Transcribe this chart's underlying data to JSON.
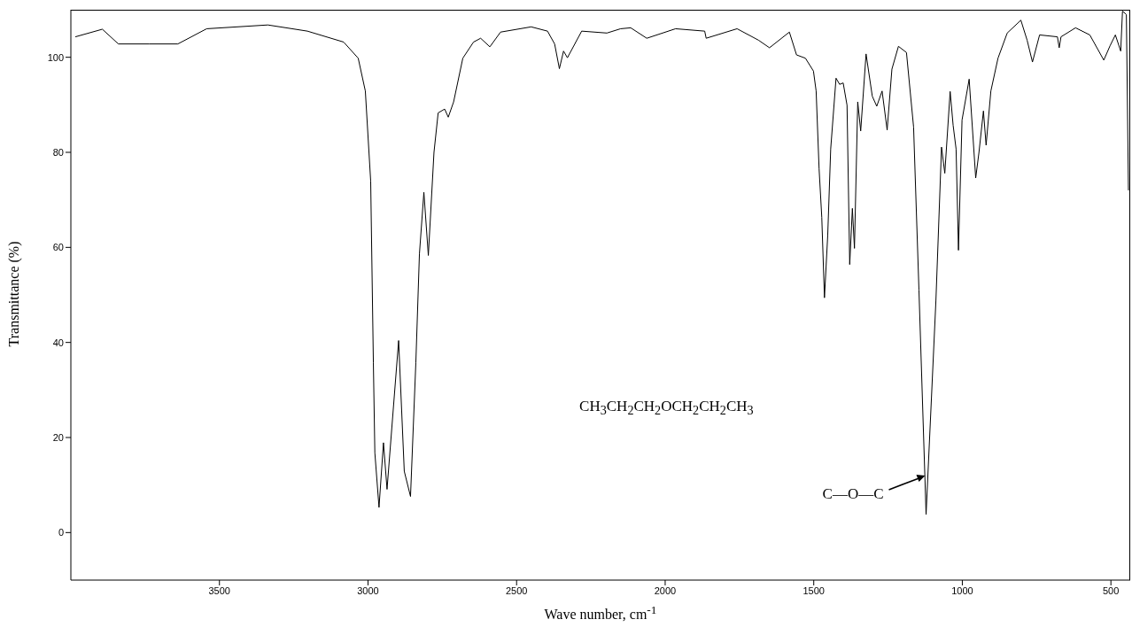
{
  "chart_data": {
    "type": "line",
    "xlabel": "Wave number, cm$^{-1}$",
    "ylabel": "Transmittance (%)",
    "xlim": [
      4000,
      435
    ],
    "xticks": [
      3500,
      3000,
      2500,
      2000,
      1500,
      1000,
      500
    ],
    "ylim": [
      -10,
      110
    ],
    "yticks": [
      0,
      20,
      40,
      60,
      80,
      100
    ],
    "grid": false,
    "marker": "none",
    "line_style": "solid",
    "annotations": [
      "CH$_{3}$CH$_{2}$CH$_{2}$OCH$_{2}$CH$_{2}$CH$_{3}$",
      {
        "text": "C—O—C",
        "x": 1122,
        "y": 12
      }
    ],
    "series": [
      {
        "color": "#000000",
        "x": [
          3985,
          3894,
          3840,
          3737,
          3640,
          3543,
          3337,
          3204,
          3082,
          3033,
          3009,
          2991,
          2982,
          2977,
          2963,
          2948,
          2936,
          2897,
          2878,
          2857,
          2839,
          2827,
          2812,
          2797,
          2778,
          2764,
          2742,
          2730,
          2712,
          2681,
          2645,
          2621,
          2590,
          2554,
          2451,
          2396,
          2372,
          2356,
          2342,
          2329,
          2281,
          2196,
          2150,
          2116,
          2062,
          1965,
          1867,
          1862,
          1758,
          1686,
          1649,
          1582,
          1558,
          1528,
          1501,
          1492,
          1482,
          1473,
          1464,
          1453,
          1443,
          1425,
          1413,
          1401,
          1388,
          1379,
          1370,
          1363,
          1352,
          1342,
          1324,
          1303,
          1288,
          1270,
          1253,
          1237,
          1215,
          1188,
          1164,
          1146,
          1122,
          1104,
          1089,
          1070,
          1059,
          1041,
          1031,
          1021,
          1013,
          1001,
          977,
          955,
          944,
          929,
          920,
          904,
          880,
          849,
          803,
          782,
          764,
          740,
          680,
          674,
          668,
          619,
          571,
          524,
          503,
          485,
          467,
          461,
          448,
          441
        ],
        "values": [
          104.3,
          105.9,
          102.8,
          102.8,
          102.8,
          106,
          106.8,
          105.5,
          103.2,
          99.8,
          92.9,
          73.9,
          35.8,
          16.8,
          5.3,
          18.9,
          9.1,
          40.4,
          12.9,
          7.6,
          35.8,
          58.6,
          71.6,
          58.3,
          80,
          88.3,
          89.1,
          87.4,
          90.6,
          99.8,
          103.2,
          104,
          102.2,
          105.3,
          106.4,
          105.5,
          102.8,
          97.6,
          101.3,
          99.9,
          105.5,
          105.1,
          106,
          106.2,
          104,
          106,
          105.5,
          104,
          106,
          103.6,
          102,
          105.3,
          100.5,
          99.8,
          97.1,
          92.9,
          76.5,
          66.3,
          49.4,
          62.5,
          80.7,
          95.6,
          94.3,
          94.6,
          89.9,
          56.4,
          68.2,
          59.8,
          90.6,
          84.5,
          100.7,
          91.8,
          89.7,
          92.9,
          84.7,
          97.5,
          102.3,
          101,
          85.3,
          51,
          3.8,
          28.2,
          48.7,
          81.1,
          75.6,
          92.8,
          85.7,
          80.7,
          59.4,
          86.8,
          95.4,
          74.6,
          80,
          88.7,
          81.5,
          92.9,
          99.8,
          105.1,
          107.8,
          103.6,
          99,
          104.7,
          104.3,
          102,
          104.3,
          106.2,
          104.7,
          99.4,
          102.4,
          104.7,
          101.3,
          109.7,
          109,
          72
        ]
      }
    ]
  }
}
